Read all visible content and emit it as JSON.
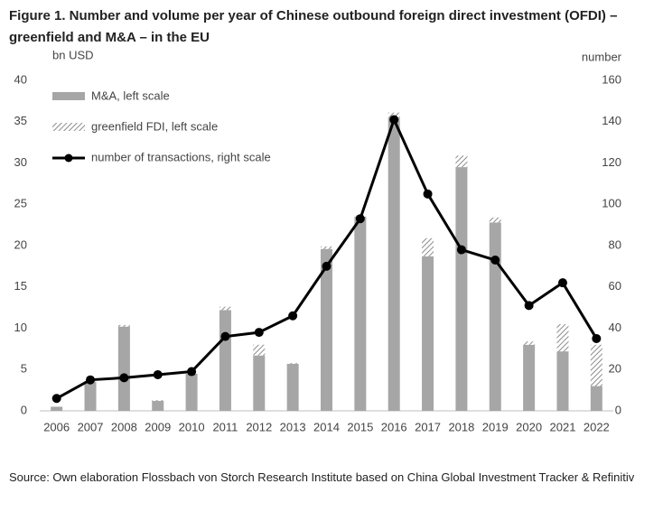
{
  "chart_data": {
    "type": "bar-line",
    "title": "Figure 1. Number and volume per year of Chinese outbound foreign direct investment (OFDI) – greenfield and M&A – in the EU",
    "ylabel": "bn USD",
    "y2label": "number",
    "source": "Source: Own elaboration Flossbach von Storch Research Institute based on China Global Investment Tracker & Refinitiv",
    "categories": [
      "2006",
      "2007",
      "2008",
      "2009",
      "2010",
      "2011",
      "2012",
      "2013",
      "2014",
      "2015",
      "2016",
      "2017",
      "2018",
      "2019",
      "2020",
      "2021",
      "2022"
    ],
    "series": [
      {
        "name": "M&A, left scale",
        "type": "bar",
        "color": "#a6a6a6",
        "values": [
          0.5,
          3.5,
          10.2,
          1.2,
          4.5,
          12.2,
          6.7,
          5.7,
          19.6,
          23.5,
          35.5,
          18.7,
          29.5,
          22.8,
          8.0,
          7.2,
          3.0
        ]
      },
      {
        "name": "greenfield FDI, left scale",
        "type": "bar",
        "color": "#a6a6a6",
        "pattern": "hatch",
        "values": [
          0,
          0.1,
          0.2,
          0.1,
          0.1,
          0.4,
          1.3,
          0.1,
          0.3,
          0.2,
          0.6,
          2.2,
          1.4,
          0.6,
          0.4,
          3.3,
          5.0
        ]
      },
      {
        "name": "number of transactions, right scale",
        "type": "line",
        "axis": "y2",
        "color": "#000000",
        "values": [
          6,
          15,
          16,
          17.5,
          19,
          36,
          38,
          46,
          70,
          93,
          141,
          105,
          78,
          73,
          51,
          62,
          35
        ]
      }
    ],
    "ylim": [
      0,
      40
    ],
    "yticks": [
      0,
      5,
      10,
      15,
      20,
      25,
      30,
      35,
      40
    ],
    "y2lim": [
      0,
      160
    ],
    "y2ticks": [
      0,
      20,
      40,
      60,
      80,
      100,
      120,
      140,
      160
    ],
    "stacked": true,
    "grid": false,
    "legend": "top-left"
  }
}
